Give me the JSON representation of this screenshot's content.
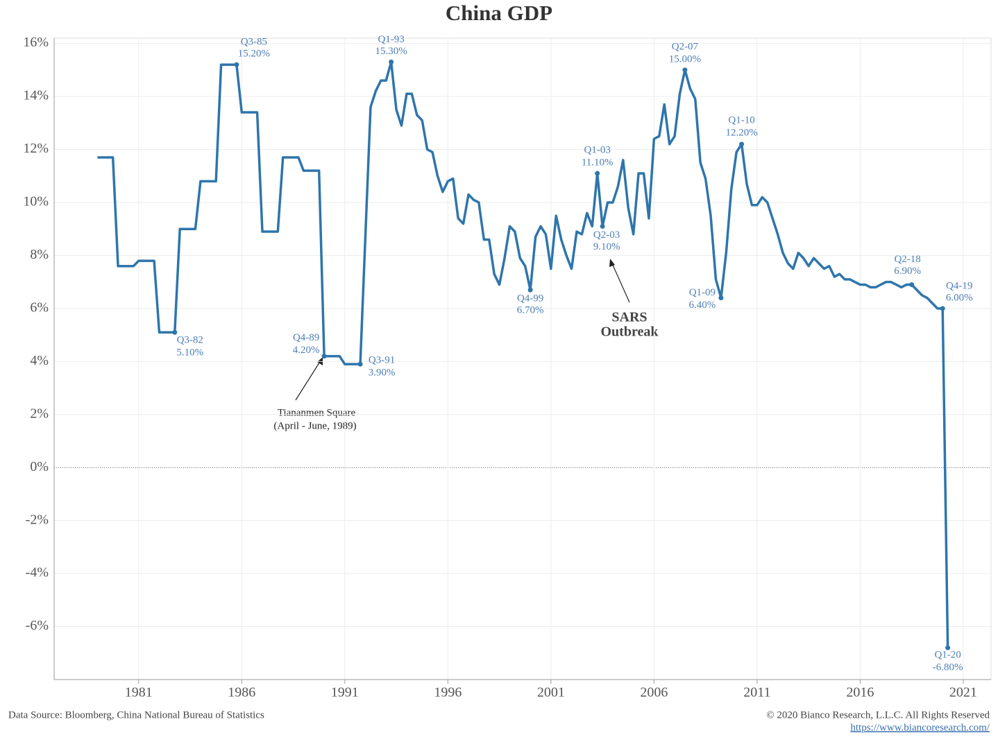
{
  "chart_data": {
    "type": "line",
    "title": "China GDP",
    "x": [
      1979,
      1979.75,
      1980,
      1980.75,
      1981,
      1981.75,
      1982,
      1982.75,
      1983,
      1983.75,
      1984,
      1984.75,
      1985,
      1985.75,
      1986,
      1986.75,
      1987,
      1987.75,
      1988,
      1988.75,
      1989,
      1989.75,
      1990,
      1990.75,
      1991,
      1991.75,
      1992.25,
      1992.5,
      1992.75,
      1993,
      1993.25,
      1993.5,
      1993.75,
      1994,
      1994.25,
      1994.5,
      1994.75,
      1995,
      1995.25,
      1995.5,
      1995.75,
      1996,
      1996.25,
      1996.5,
      1996.75,
      1997,
      1997.25,
      1997.5,
      1997.75,
      1998,
      1998.25,
      1998.5,
      1998.75,
      1999,
      1999.25,
      1999.5,
      1999.75,
      2000,
      2000.25,
      2000.5,
      2000.75,
      2001,
      2001.25,
      2001.5,
      2001.75,
      2002,
      2002.25,
      2002.5,
      2002.75,
      2003,
      2003.25,
      2003.5,
      2003.75,
      2004,
      2004.25,
      2004.5,
      2004.75,
      2005,
      2005.25,
      2005.5,
      2005.75,
      2006,
      2006.25,
      2006.5,
      2006.75,
      2007,
      2007.25,
      2007.5,
      2007.75,
      2008,
      2008.25,
      2008.5,
      2008.75,
      2009,
      2009.25,
      2009.5,
      2009.75,
      2010,
      2010.25,
      2010.5,
      2010.75,
      2011,
      2011.25,
      2011.5,
      2011.75,
      2012,
      2012.25,
      2012.5,
      2012.75,
      2013,
      2013.25,
      2013.5,
      2013.75,
      2014,
      2014.25,
      2014.5,
      2014.75,
      2015,
      2015.25,
      2015.5,
      2015.75,
      2016,
      2016.25,
      2016.5,
      2016.75,
      2017,
      2017.25,
      2017.5,
      2017.75,
      2018,
      2018.25,
      2018.5,
      2018.75,
      2019,
      2019.25,
      2019.5,
      2019.75,
      2020,
      2020.25
    ],
    "series": [
      {
        "color": "#2e75ac",
        "values": [
          11.7,
          11.7,
          7.6,
          7.6,
          7.8,
          7.8,
          5.1,
          5.1,
          9.0,
          9.0,
          10.8,
          10.8,
          15.2,
          15.2,
          13.4,
          13.4,
          8.9,
          8.9,
          11.7,
          11.7,
          11.2,
          11.2,
          4.2,
          4.2,
          3.9,
          3.9,
          13.6,
          14.2,
          14.6,
          14.6,
          15.3,
          13.5,
          12.9,
          14.1,
          14.1,
          13.3,
          13.1,
          12.0,
          11.9,
          11.0,
          10.4,
          10.8,
          10.9,
          9.4,
          9.2,
          10.3,
          10.1,
          10.0,
          8.6,
          8.6,
          7.3,
          6.9,
          7.9,
          9.1,
          8.9,
          7.9,
          7.6,
          6.7,
          8.7,
          9.1,
          8.8,
          7.5,
          9.5,
          8.6,
          8.0,
          7.5,
          8.9,
          8.8,
          9.6,
          9.1,
          11.1,
          9.1,
          10.0,
          10.0,
          10.6,
          11.6,
          9.8,
          8.8,
          11.1,
          11.1,
          9.4,
          12.4,
          12.5,
          13.7,
          12.2,
          12.5,
          14.1,
          15.0,
          14.3,
          13.9,
          11.5,
          10.9,
          9.5,
          7.1,
          6.4,
          8.1,
          10.5,
          11.9,
          12.2,
          10.7,
          9.9,
          9.9,
          10.2,
          10.0,
          9.4,
          8.8,
          8.1,
          7.7,
          7.5,
          8.1,
          7.9,
          7.6,
          7.9,
          7.7,
          7.5,
          7.6,
          7.2,
          7.3,
          7.1,
          7.1,
          7.0,
          6.9,
          6.9,
          6.8,
          6.8,
          6.9,
          7.0,
          7.0,
          6.9,
          6.8,
          6.9,
          6.9,
          6.7,
          6.5,
          6.4,
          6.2,
          6.0,
          6.0,
          -6.8
        ]
      }
    ],
    "xlim": [
      1976.9,
      2022.35
    ],
    "ylim": [
      -8,
      16.2
    ],
    "xticks": [
      1981,
      1986,
      1991,
      1996,
      2001,
      2006,
      2011,
      2016,
      2021
    ],
    "yticks": [
      {
        "value": -6,
        "label": "-6%"
      },
      {
        "value": -4,
        "label": "-4%"
      },
      {
        "value": -2,
        "label": "-2%"
      },
      {
        "value": 0,
        "label": "0%"
      },
      {
        "value": 2,
        "label": "2%"
      },
      {
        "value": 4,
        "label": "4%"
      },
      {
        "value": 6,
        "label": "6%"
      },
      {
        "value": 8,
        "label": "8%"
      },
      {
        "value": 10,
        "label": "10%"
      },
      {
        "value": 12,
        "label": "12%"
      },
      {
        "value": 14,
        "label": "14%"
      },
      {
        "value": 16,
        "label": "16%"
      }
    ],
    "grid": true,
    "zero_line": true,
    "annotations": [
      {
        "label": "Q3-82",
        "value_label": "5.10%",
        "x": 1982.75,
        "y": 5.1
      },
      {
        "label": "Q3-85",
        "value_label": "15.20%",
        "x": 1985.75,
        "y": 15.2
      },
      {
        "label": "Q4-89",
        "value_label": "4.20%",
        "x": 1990,
        "y": 4.2
      },
      {
        "label": "Q3-91",
        "value_label": "3.90%",
        "x": 1991.75,
        "y": 3.9
      },
      {
        "label": "Q1-93",
        "value_label": "15.30%",
        "x": 1993.25,
        "y": 15.3
      },
      {
        "label": "Q4-99",
        "value_label": "6.70%",
        "x": 2000,
        "y": 6.7
      },
      {
        "label": "Q1-03",
        "value_label": "11.10%",
        "x": 2003.25,
        "y": 11.1
      },
      {
        "label": "Q2-03",
        "value_label": "9.10%",
        "x": 2003.5,
        "y": 9.1
      },
      {
        "label": "Q2-07",
        "value_label": "15.00%",
        "x": 2007.5,
        "y": 15.0
      },
      {
        "label": "Q1-09",
        "value_label": "6.40%",
        "x": 2009.25,
        "y": 6.4
      },
      {
        "label": "Q1-10",
        "value_label": "12.20%",
        "x": 2010.25,
        "y": 12.2
      },
      {
        "label": "Q2-18",
        "value_label": "6.90%",
        "x": 2018.5,
        "y": 6.9
      },
      {
        "label": "Q4-19",
        "value_label": "6.00%",
        "x": 2020,
        "y": 6.0
      },
      {
        "label": "Q1-20",
        "value_label": "-6.80%",
        "x": 2020.25,
        "y": -6.8
      }
    ],
    "notes": [
      [
        "Tiananmen Square",
        "(April - June, 1989)"
      ],
      [
        "SARS",
        "Outbreak"
      ]
    ],
    "source": "Data Source: Bloomberg, China National Bureau of Statistics",
    "copyright": "© 2020 Bianco Research, L.L.C. All Rights Reserved",
    "url": "https://www.biancoresearch.com/"
  }
}
